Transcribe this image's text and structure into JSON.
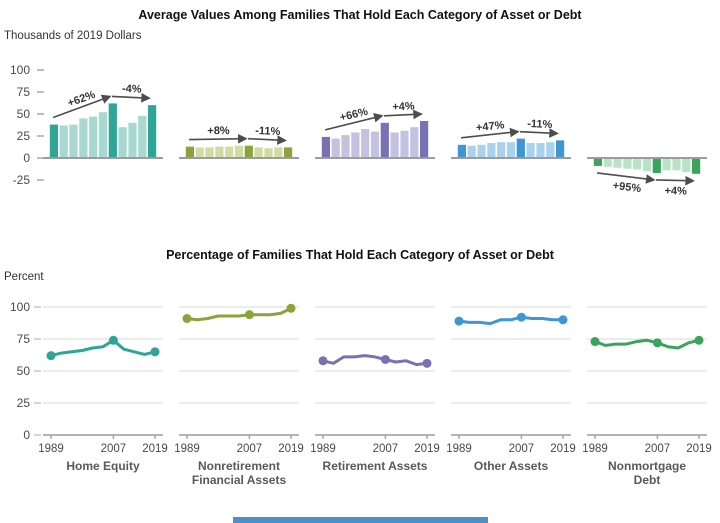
{
  "page": {
    "top_title": "Average Values Among Families That Hold Each Category of Asset or Debt",
    "bottom_title": "Percentage of Families That Hold Each Category of Asset or Debt"
  },
  "colors": {
    "axis": "#9c9c9c",
    "gridline": "#d8d8d8",
    "tick_text": "#4a4a4a",
    "annotation": "#4d4d4d",
    "footer_bar": "#4d8fc6"
  },
  "chart_data": [
    {
      "type": "bar",
      "title": "Average Values Among Families That Hold Each Category of Asset or Debt",
      "ylabel": "Thousands of 2019 Dollars",
      "ylim": [
        -25,
        100
      ],
      "yticks": [
        100,
        75,
        50,
        25,
        0,
        -25
      ],
      "x": [
        1989,
        1992,
        1995,
        1998,
        2001,
        2004,
        2007,
        2010,
        2013,
        2016,
        2019
      ],
      "highlight_years": [
        1989,
        2007,
        2019
      ],
      "grid": false,
      "series": [
        {
          "name": "Home Equity",
          "color_dark": "#2da597",
          "color_light": "#a7d9d1",
          "values": [
            38,
            37,
            38,
            45,
            47,
            52,
            62,
            35,
            40,
            48,
            60
          ],
          "annotations": [
            {
              "label": "+62%",
              "from": 1989,
              "to": 2007
            },
            {
              "label": "-4%",
              "from": 2007,
              "to": 2019
            }
          ]
        },
        {
          "name": "Nonretirement Financial Assets",
          "color_dark": "#8aa43c",
          "color_light": "#d3dba4",
          "values": [
            13,
            12,
            12,
            13,
            13,
            14,
            14,
            12,
            11,
            12,
            12
          ],
          "annotations": [
            {
              "label": "+8%",
              "from": 1989,
              "to": 2007
            },
            {
              "label": "-11%",
              "from": 2007,
              "to": 2019
            }
          ]
        },
        {
          "name": "Retirement Assets",
          "color_dark": "#7a71b4",
          "color_light": "#c5c1e0",
          "values": [
            24,
            22,
            26,
            29,
            33,
            30,
            40,
            29,
            31,
            35,
            42
          ],
          "annotations": [
            {
              "label": "+66%",
              "from": 1989,
              "to": 2007
            },
            {
              "label": "+4%",
              "from": 2007,
              "to": 2019
            }
          ]
        },
        {
          "name": "Other Assets",
          "color_dark": "#3e96d2",
          "color_light": "#a9d3ec",
          "values": [
            15,
            14,
            15,
            17,
            18,
            18,
            22,
            17,
            17,
            18,
            20
          ],
          "annotations": [
            {
              "label": "+47%",
              "from": 1989,
              "to": 2007
            },
            {
              "label": "-11%",
              "from": 2007,
              "to": 2019
            }
          ]
        },
        {
          "name": "Nonmortgage Debt",
          "color_dark": "#3aa45c",
          "color_light": "#b9e2c6",
          "values": [
            -9,
            -10,
            -11,
            -12,
            -13,
            -15,
            -17,
            -14,
            -14,
            -16,
            -18
          ],
          "annotations": [
            {
              "label": "+95%",
              "from": 1989,
              "to": 2007
            },
            {
              "label": "+4%",
              "from": 2007,
              "to": 2019
            }
          ]
        }
      ]
    },
    {
      "type": "line",
      "title": "Percentage of Families That Hold Each Category of Asset or Debt",
      "ylabel": "Percent",
      "ylim": [
        0,
        100
      ],
      "yticks": [
        100,
        75,
        50,
        25,
        0
      ],
      "x": [
        1989,
        1992,
        1995,
        1998,
        2001,
        2004,
        2007,
        2010,
        2013,
        2016,
        2019
      ],
      "xticks": [
        1989,
        2007,
        2019
      ],
      "grid": true,
      "series": [
        {
          "name": "Home Equity",
          "color": "#2da597",
          "values": [
            62,
            64,
            65,
            66,
            68,
            69,
            74,
            67,
            65,
            63,
            65
          ]
        },
        {
          "name": "Nonretirement Financial Assets",
          "color": "#8aa43c",
          "values": [
            91,
            90,
            91,
            93,
            93,
            93,
            94,
            94,
            94,
            95,
            99
          ]
        },
        {
          "name": "Retirement Assets",
          "color": "#7a71b4",
          "values": [
            58,
            56,
            61,
            61,
            62,
            61,
            59,
            57,
            58,
            55,
            56
          ]
        },
        {
          "name": "Other Assets",
          "color": "#3e96d2",
          "values": [
            89,
            88,
            88,
            87,
            90,
            90,
            92,
            91,
            91,
            90,
            90
          ]
        },
        {
          "name": "Nonmortgage Debt",
          "color": "#3aa45c",
          "values": [
            73,
            70,
            71,
            71,
            73,
            74,
            72,
            69,
            68,
            72,
            74
          ]
        }
      ]
    }
  ]
}
